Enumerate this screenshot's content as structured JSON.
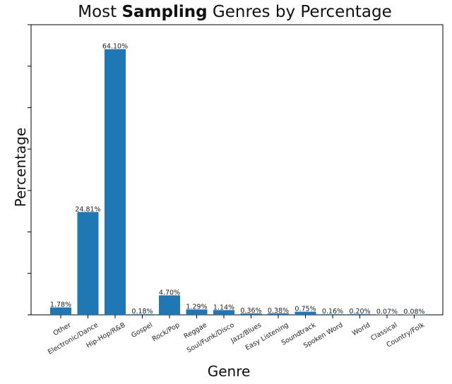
{
  "title": {
    "before": "Most ",
    "bold": "Sampling",
    "after": " Genres by Percentage"
  },
  "chart_data": {
    "type": "bar",
    "title": "Most Sampling Genres by Percentage",
    "xlabel": "Genre",
    "ylabel": "Percentage",
    "ylim": [
      0,
      70
    ],
    "y_tick_labels_shown": false,
    "grid": false,
    "color": "#1f77b4",
    "categories": [
      "Other",
      "Electronic/Dance",
      "Hip-Hop/R&B",
      "Gospel",
      "Rock/Pop",
      "Reggae",
      "Soul/Funk/Disco",
      "Jazz/Blues",
      "Easy Listening",
      "Soundtrack",
      "Spoken Word",
      "World",
      "Classical",
      "Country/Folk"
    ],
    "values": [
      1.78,
      24.81,
      64.1,
      0.18,
      4.7,
      1.29,
      1.14,
      0.36,
      0.38,
      0.75,
      0.16,
      0.2,
      0.07,
      0.08
    ],
    "data_labels": [
      "1.78%",
      "24.81%",
      "64.10%",
      "0.18%",
      "4.70%",
      "1.29%",
      "1.14%",
      "0.36%",
      "0.38%",
      "0.75%",
      "0.16%",
      "0.20%",
      "0.07%",
      "0.08%"
    ]
  }
}
